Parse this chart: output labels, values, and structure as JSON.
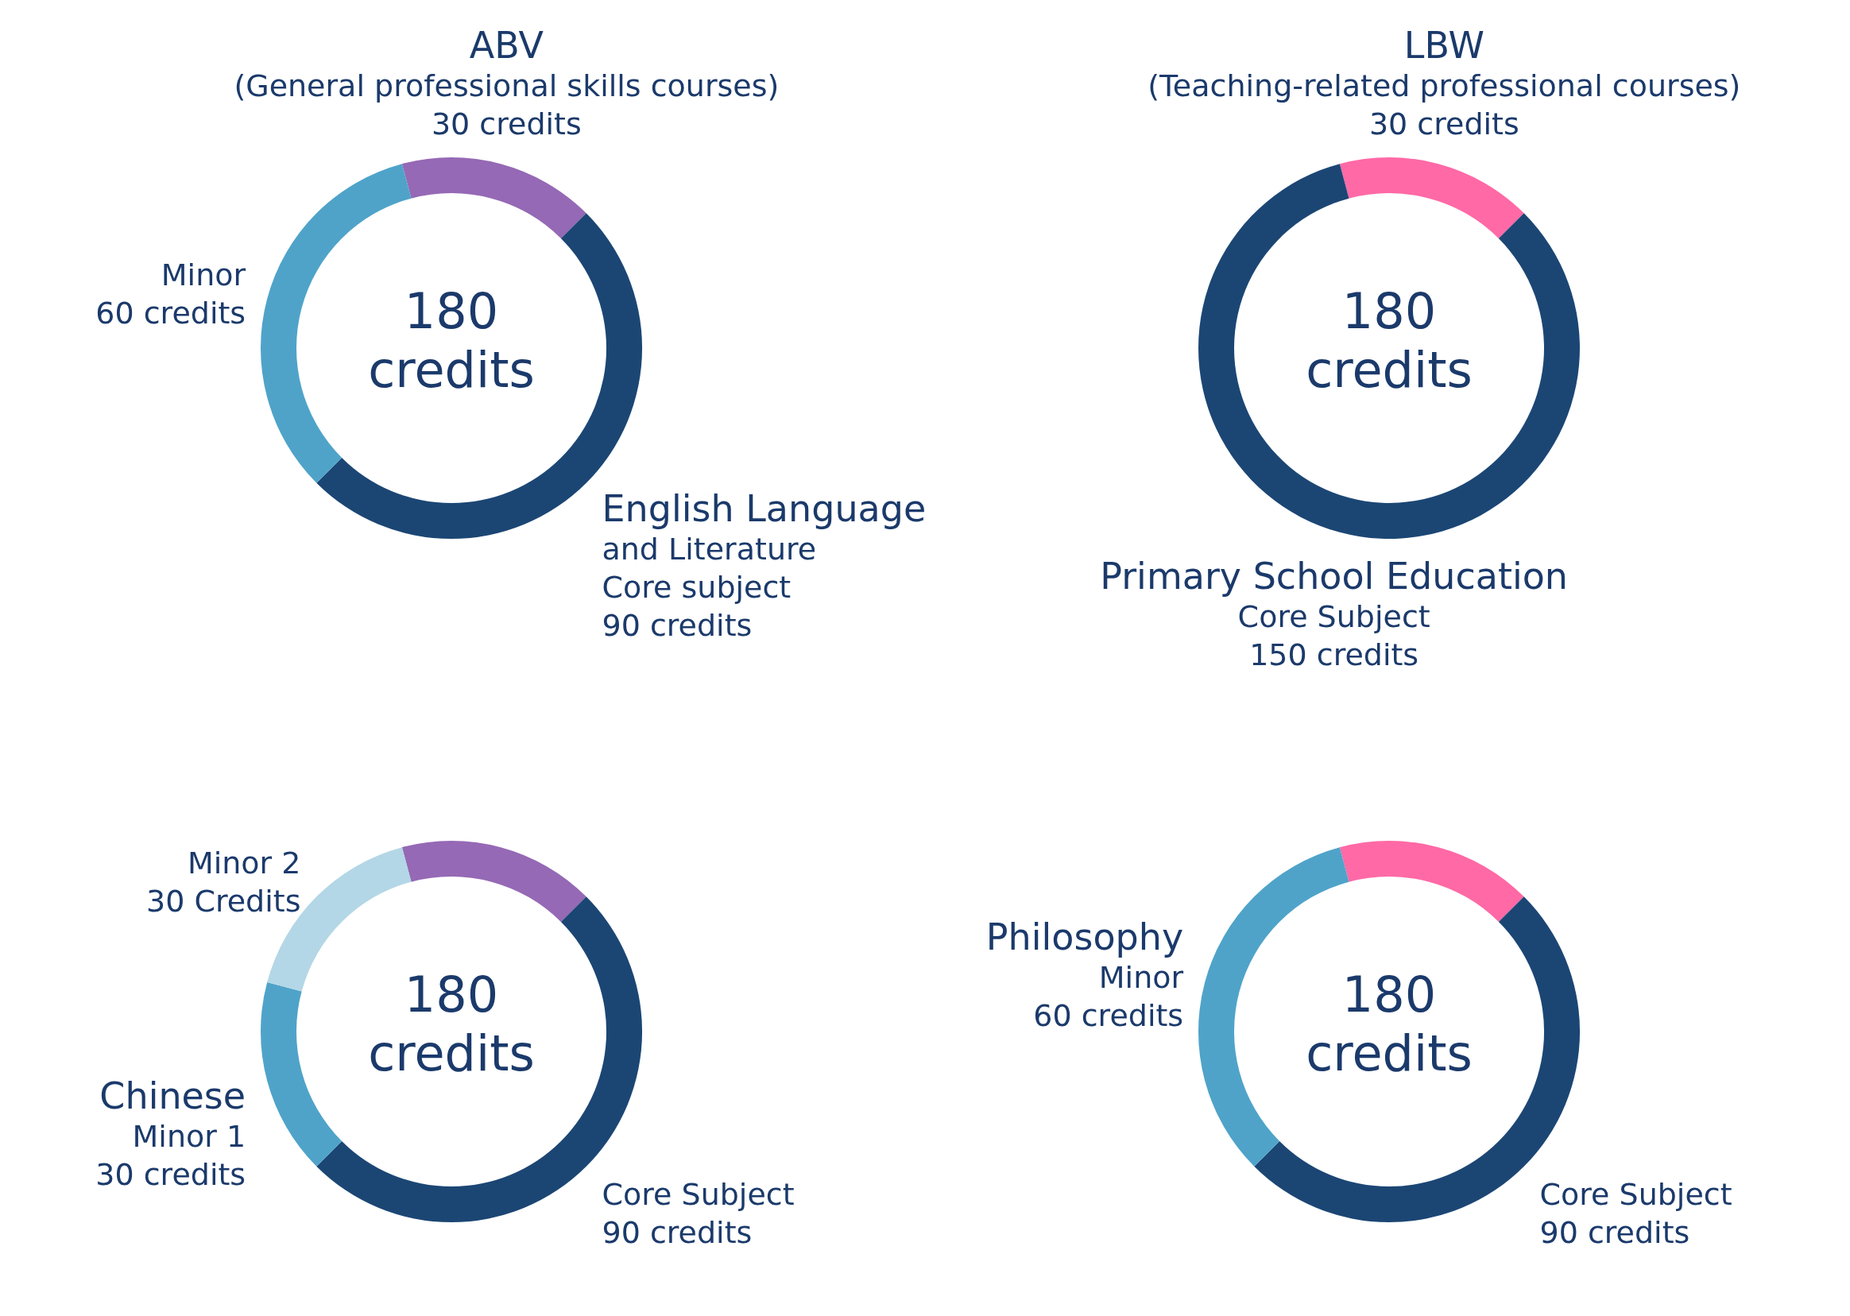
{
  "chart_data": [
    {
      "type": "donut",
      "title": "180 credits",
      "categories": [
        "ABV\n(General professional skills courses)",
        "English Language\nand Literature\nCore subject",
        "Minor"
      ],
      "values": [
        30,
        90,
        60
      ],
      "value_labels": [
        "30 credits",
        "90 credits",
        "60 credits"
      ],
      "colors": [
        "#9569b5",
        "#1b4674",
        "#4fa3c9"
      ]
    },
    {
      "type": "donut",
      "title": "180 credits",
      "categories": [
        "LBW\n(Teaching-related professional courses)",
        "Primary School Education\nCore Subject"
      ],
      "values": [
        30,
        150
      ],
      "value_labels": [
        "30 credits",
        "150 credits"
      ],
      "colors": [
        "#ff69a6",
        "#1b4674"
      ]
    },
    {
      "type": "donut",
      "title": "180 credits",
      "categories": [
        null,
        "Core Subject",
        "Chinese\nMinor 1",
        "Minor 2"
      ],
      "values": [
        30,
        90,
        30,
        30
      ],
      "value_labels": [
        null,
        "90 credits",
        "30 credits",
        "30 Credits"
      ],
      "colors": [
        "#9569b5",
        "#1b4674",
        "#4fa3c9",
        "#b3d7e6"
      ]
    },
    {
      "type": "donut",
      "title": "180 credits",
      "categories": [
        null,
        "Core Subject",
        "Philosophy\nMinor"
      ],
      "values": [
        30,
        90,
        60
      ],
      "value_labels": [
        null,
        "90 credits",
        "60 credits"
      ],
      "colors": [
        "#ff69a6",
        "#1b4674",
        "#4fa3c9"
      ]
    }
  ]
}
